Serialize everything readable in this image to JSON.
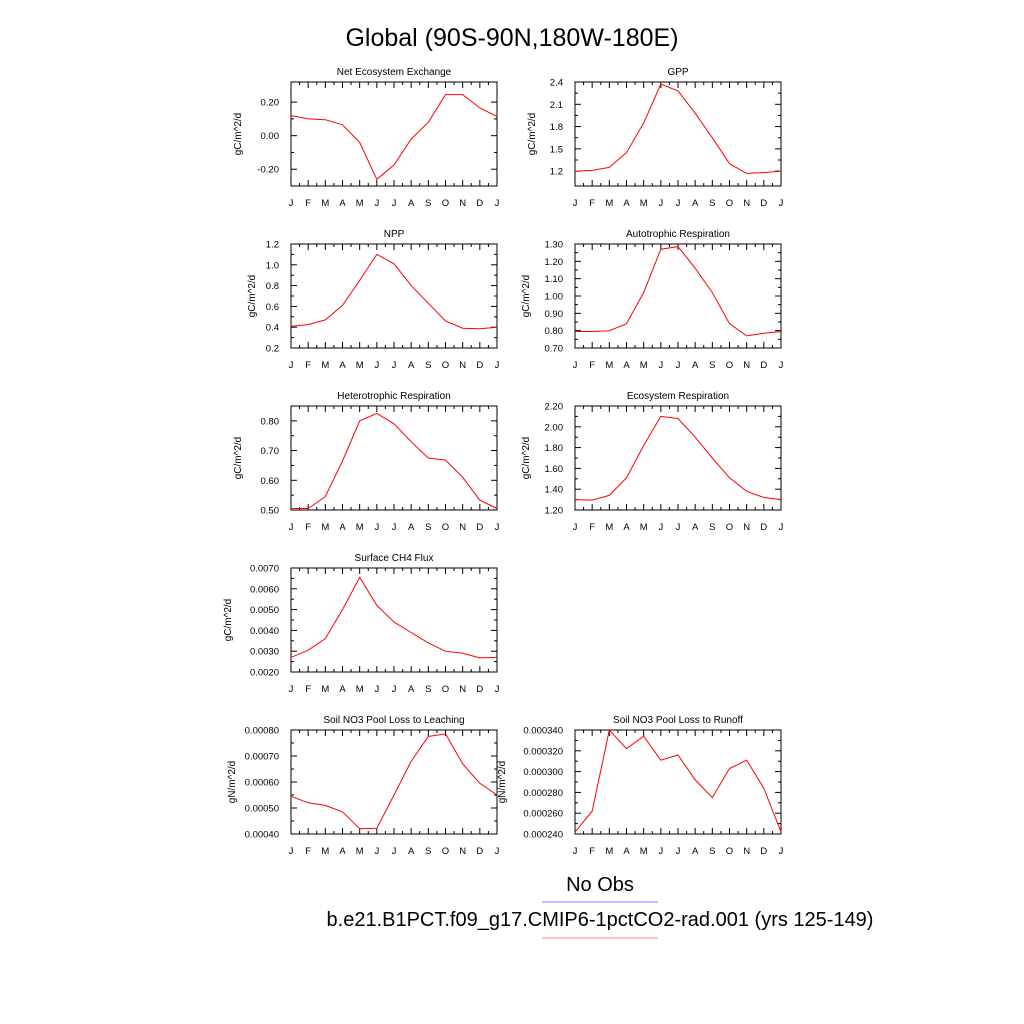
{
  "title": "Global (90S-90N,180W-180E)",
  "legend": [
    {
      "label": "No Obs",
      "color": "#7f7fff"
    },
    {
      "label": "b.e21.B1PCT.f09_g17.CMIP6-1pctCO2-rad.001 (yrs 125-149)",
      "color": "#ff7f7f"
    }
  ],
  "series_color": "#ff0000",
  "chart_data": [
    {
      "type": "line",
      "title": "Net Ecosystem Exchange",
      "ylabel": "gC/m^2/d",
      "categories": [
        "J",
        "F",
        "M",
        "A",
        "M",
        "J",
        "J",
        "A",
        "S",
        "O",
        "N",
        "D",
        "J"
      ],
      "ylim": [
        -0.3,
        0.32
      ],
      "yticks": [
        -0.2,
        0.0,
        0.2
      ],
      "ytick_labels": [
        "-0.20",
        "0.00",
        "0.20"
      ],
      "values": [
        0.12,
        0.1,
        0.095,
        0.065,
        -0.04,
        -0.26,
        -0.175,
        -0.02,
        0.08,
        0.245,
        0.245,
        0.165,
        0.115
      ]
    },
    {
      "type": "line",
      "title": "GPP",
      "ylabel": "gC/m^2/d",
      "categories": [
        "J",
        "F",
        "M",
        "A",
        "M",
        "J",
        "J",
        "A",
        "S",
        "O",
        "N",
        "D",
        "J"
      ],
      "ylim": [
        1.0,
        2.4
      ],
      "yticks": [
        1.2,
        1.5,
        1.8,
        2.1,
        2.4
      ],
      "ytick_labels": [
        "1.2",
        "1.5",
        "1.8",
        "2.1",
        "2.4"
      ],
      "values": [
        1.2,
        1.21,
        1.25,
        1.45,
        1.85,
        2.37,
        2.28,
        1.98,
        1.65,
        1.3,
        1.17,
        1.18,
        1.2
      ]
    },
    {
      "type": "line",
      "title": "NPP",
      "ylabel": "gC/m^2/d",
      "categories": [
        "J",
        "F",
        "M",
        "A",
        "M",
        "J",
        "J",
        "A",
        "S",
        "O",
        "N",
        "D",
        "J"
      ],
      "ylim": [
        0.2,
        1.2
      ],
      "yticks": [
        0.2,
        0.4,
        0.6,
        0.8,
        1.0,
        1.2
      ],
      "ytick_labels": [
        "0.2",
        "0.4",
        "0.6",
        "0.8",
        "1.0",
        "1.2"
      ],
      "values": [
        0.41,
        0.425,
        0.47,
        0.61,
        0.85,
        1.1,
        1.01,
        0.8,
        0.63,
        0.46,
        0.39,
        0.385,
        0.4
      ]
    },
    {
      "type": "line",
      "title": "Autotrophic Respiration",
      "ylabel": "gC/m^2/d",
      "categories": [
        "J",
        "F",
        "M",
        "A",
        "M",
        "J",
        "J",
        "A",
        "S",
        "O",
        "N",
        "D",
        "J"
      ],
      "ylim": [
        0.7,
        1.3
      ],
      "yticks": [
        0.7,
        0.8,
        0.9,
        1.0,
        1.1,
        1.2,
        1.3
      ],
      "ytick_labels": [
        "0.70",
        "0.80",
        "0.90",
        "1.00",
        "1.10",
        "1.20",
        "1.30"
      ],
      "values": [
        0.795,
        0.795,
        0.8,
        0.84,
        1.02,
        1.27,
        1.285,
        1.16,
        1.02,
        0.84,
        0.77,
        0.785,
        0.795
      ]
    },
    {
      "type": "line",
      "title": "Heterotrophic Respiration",
      "ylabel": "gC/m^2/d",
      "categories": [
        "J",
        "F",
        "M",
        "A",
        "M",
        "J",
        "J",
        "A",
        "S",
        "O",
        "N",
        "D",
        "J"
      ],
      "ylim": [
        0.5,
        0.85
      ],
      "yticks": [
        0.5,
        0.6,
        0.7,
        0.8
      ],
      "ytick_labels": [
        "0.50",
        "0.60",
        "0.70",
        "0.80"
      ],
      "values": [
        0.505,
        0.505,
        0.545,
        0.665,
        0.8,
        0.825,
        0.79,
        0.73,
        0.675,
        0.668,
        0.61,
        0.533,
        0.505
      ]
    },
    {
      "type": "line",
      "title": "Ecosystem Respiration",
      "ylabel": "gC/m^2/d",
      "categories": [
        "J",
        "F",
        "M",
        "A",
        "M",
        "J",
        "J",
        "A",
        "S",
        "O",
        "N",
        "D",
        "J"
      ],
      "ylim": [
        1.2,
        2.2
      ],
      "yticks": [
        1.2,
        1.4,
        1.6,
        1.8,
        2.0,
        2.2
      ],
      "ytick_labels": [
        "1.20",
        "1.40",
        "1.60",
        "1.80",
        "2.00",
        "2.20"
      ],
      "values": [
        1.3,
        1.295,
        1.34,
        1.51,
        1.82,
        2.1,
        2.08,
        1.9,
        1.7,
        1.51,
        1.38,
        1.32,
        1.3
      ]
    },
    {
      "type": "line",
      "title": "Surface CH4 Flux",
      "ylabel": "gC/m^2/d",
      "categories": [
        "J",
        "F",
        "M",
        "A",
        "M",
        "J",
        "J",
        "A",
        "S",
        "O",
        "N",
        "D",
        "J"
      ],
      "ylim": [
        0.002,
        0.007
      ],
      "yticks": [
        0.002,
        0.003,
        0.004,
        0.005,
        0.006,
        0.007
      ],
      "ytick_labels": [
        "0.0020",
        "0.0030",
        "0.0040",
        "0.0050",
        "0.0060",
        "0.0070"
      ],
      "values": [
        0.0027,
        0.00305,
        0.0036,
        0.005,
        0.00655,
        0.0052,
        0.0044,
        0.0039,
        0.0034,
        0.003,
        0.0029,
        0.00268,
        0.0027
      ]
    },
    {
      "type": "line",
      "title": "Soil NO3 Pool Loss to Leaching",
      "ylabel": "gN/m^2/d",
      "categories": [
        "J",
        "F",
        "M",
        "A",
        "M",
        "J",
        "J",
        "A",
        "S",
        "O",
        "N",
        "D",
        "J"
      ],
      "ylim": [
        0.0004,
        0.0008
      ],
      "yticks": [
        0.0004,
        0.0005,
        0.0006,
        0.0007,
        0.0008
      ],
      "ytick_labels": [
        "0.00040",
        "0.00050",
        "0.00060",
        "0.00070",
        "0.00080"
      ],
      "values": [
        0.000545,
        0.00052,
        0.00051,
        0.000485,
        0.00042,
        0.000422,
        0.00055,
        0.00068,
        0.000775,
        0.000785,
        0.00067,
        0.000595,
        0.00055
      ]
    },
    {
      "type": "line",
      "title": "Soil NO3 Pool Loss to Runoff",
      "ylabel": "gN/m^2/d",
      "categories": [
        "J",
        "F",
        "M",
        "A",
        "M",
        "J",
        "J",
        "A",
        "S",
        "O",
        "N",
        "D",
        "J"
      ],
      "ylim": [
        0.00024,
        0.00034
      ],
      "yticks": [
        0.00024,
        0.00026,
        0.00028,
        0.0003,
        0.00032,
        0.00034
      ],
      "ytick_labels": [
        "0.000240",
        "0.000260",
        "0.000280",
        "0.000300",
        "0.000320",
        "0.000340"
      ],
      "values": [
        0.000242,
        0.000262,
        0.00034,
        0.000322,
        0.000334,
        0.000311,
        0.000316,
        0.000292,
        0.000275,
        0.000303,
        0.000311,
        0.000284,
        0.000242
      ]
    }
  ]
}
